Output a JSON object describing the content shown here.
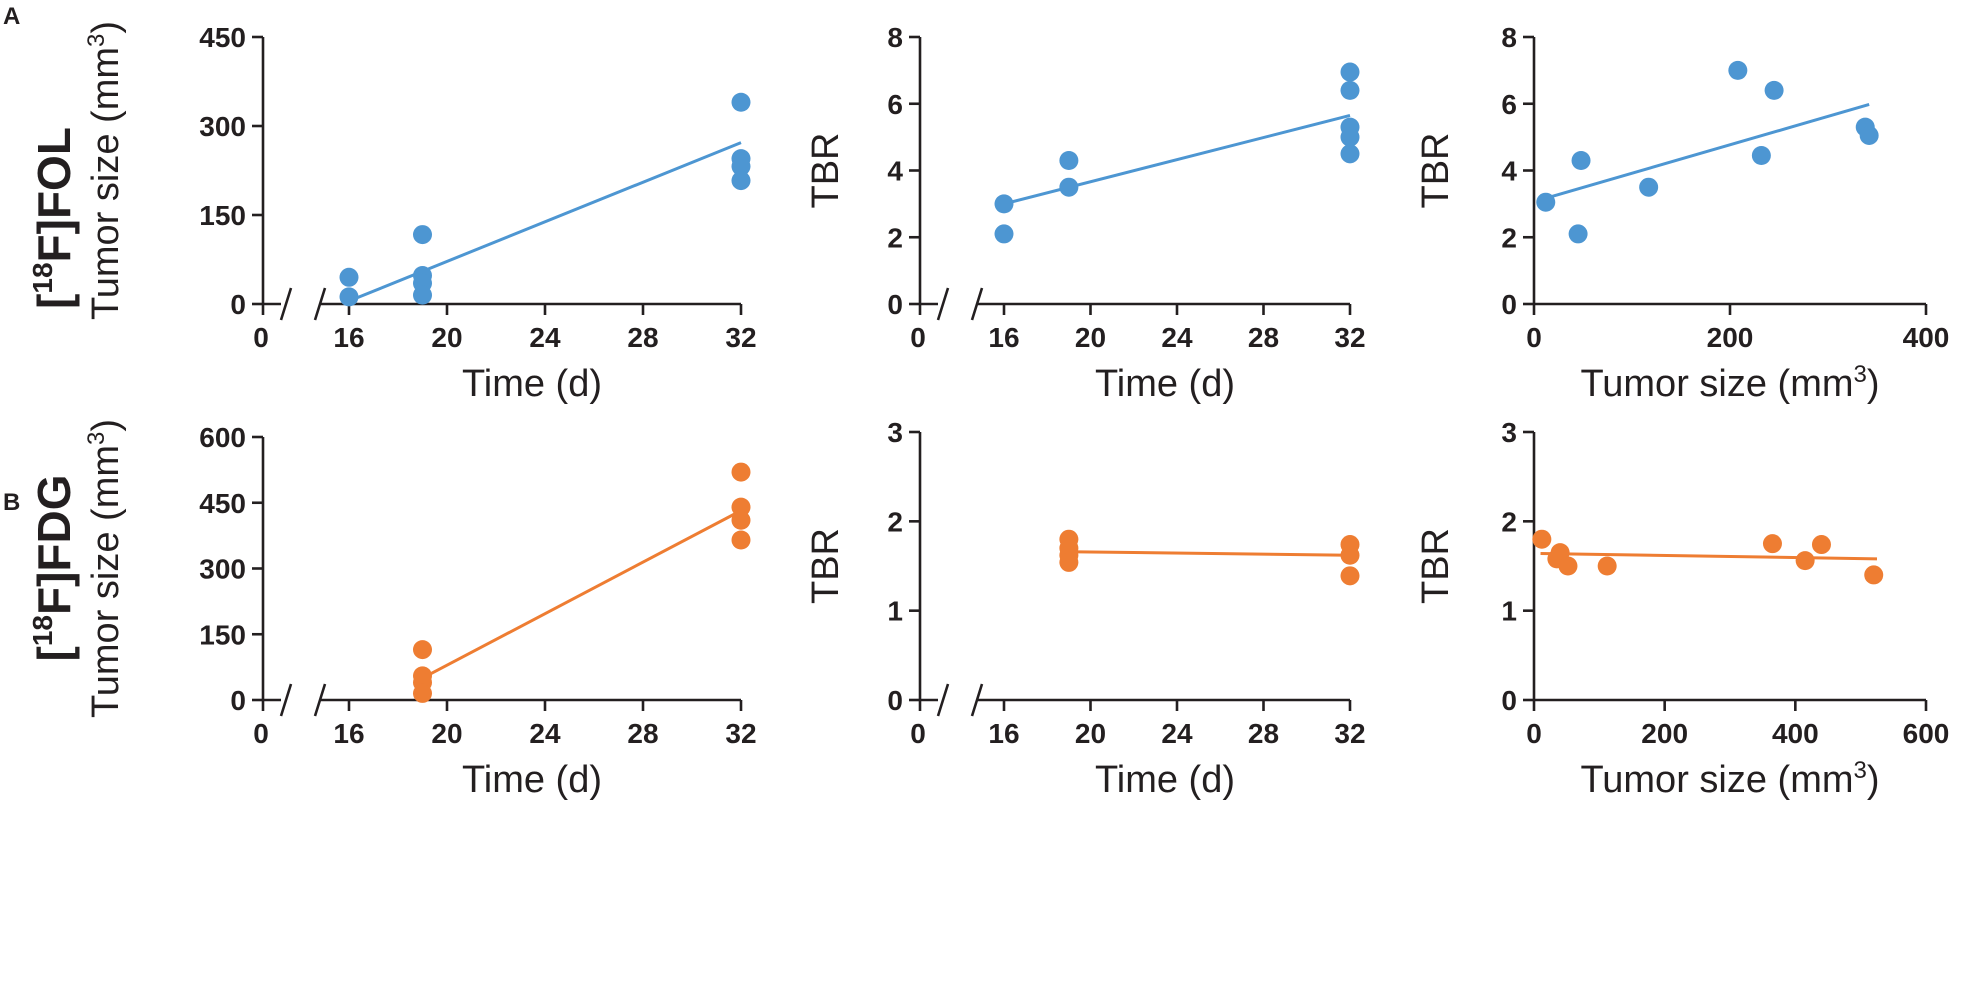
{
  "panel_letters": [
    "A",
    "B"
  ],
  "row_labels": [
    {
      "prefix": "[",
      "sup": "18",
      "suffix": "F]FOL"
    },
    {
      "prefix": "[",
      "sup": "18",
      "suffix": "F]FDG"
    }
  ],
  "colors": {
    "FOL": "#4d96d2",
    "FDG": "#ee7d32",
    "axis": "#231f20"
  },
  "chart_data": [
    {
      "id": "A1",
      "row": "A",
      "type": "scatter",
      "tracer": "[18F]FOL",
      "color": "#4d96d2",
      "title": "",
      "xlabel": "Time (d)",
      "ylabel": "Tumor size (mm",
      "ylabel_sup": "3",
      "ylabel_end": ")",
      "x_broken": true,
      "x_ticks": [
        0,
        16,
        20,
        24,
        28,
        32
      ],
      "xlim": [
        12,
        32
      ],
      "y_ticks": [
        0,
        150,
        300,
        450
      ],
      "ylim": [
        0,
        450
      ],
      "points": [
        [
          16,
          45
        ],
        [
          16,
          12
        ],
        [
          19,
          117
        ],
        [
          19,
          48
        ],
        [
          19,
          35
        ],
        [
          19,
          15
        ],
        [
          32,
          340
        ],
        [
          32,
          245
        ],
        [
          32,
          232
        ],
        [
          32,
          208
        ]
      ],
      "fit": [
        [
          16,
          5
        ],
        [
          32,
          272
        ]
      ]
    },
    {
      "id": "A2",
      "row": "A",
      "type": "scatter",
      "tracer": "[18F]FOL",
      "color": "#4d96d2",
      "title": "",
      "xlabel": "Time (d)",
      "ylabel": "TBR",
      "ylabel_sup": "",
      "ylabel_end": "",
      "x_broken": true,
      "x_ticks": [
        0,
        16,
        20,
        24,
        28,
        32
      ],
      "xlim": [
        12,
        32
      ],
      "y_ticks": [
        0,
        2,
        4,
        6,
        8
      ],
      "ylim": [
        0,
        8
      ],
      "points": [
        [
          16,
          3.0
        ],
        [
          16,
          2.1
        ],
        [
          19,
          4.3
        ],
        [
          19,
          3.5
        ],
        [
          32,
          6.95
        ],
        [
          32,
          6.4
        ],
        [
          32,
          5.3
        ],
        [
          32,
          5.0
        ],
        [
          32,
          4.5
        ]
      ],
      "fit": [
        [
          16,
          3.0
        ],
        [
          32,
          5.65
        ]
      ]
    },
    {
      "id": "A3",
      "row": "A",
      "type": "scatter",
      "tracer": "[18F]FOL",
      "color": "#4d96d2",
      "title": "",
      "xlabel": "Tumor size (mm",
      "xlabel_sup": "3",
      "xlabel_end": ")",
      "ylabel": "TBR",
      "ylabel_sup": "",
      "ylabel_end": "",
      "x_broken": false,
      "x_ticks": [
        0,
        200,
        400
      ],
      "xlim": [
        0,
        400
      ],
      "y_ticks": [
        0,
        2,
        4,
        6,
        8
      ],
      "ylim": [
        0,
        8
      ],
      "points": [
        [
          12,
          3.05
        ],
        [
          45,
          2.1
        ],
        [
          48,
          4.3
        ],
        [
          117,
          3.5
        ],
        [
          208,
          7.0
        ],
        [
          232,
          4.45
        ],
        [
          245,
          6.4
        ],
        [
          338,
          5.3
        ],
        [
          342,
          5.05
        ]
      ],
      "fit": [
        [
          10,
          3.15
        ],
        [
          342,
          5.98
        ]
      ]
    },
    {
      "id": "B1",
      "row": "B",
      "type": "scatter",
      "tracer": "[18F]FDG",
      "color": "#ee7d32",
      "title": "",
      "xlabel": "Time (d)",
      "ylabel": "Tumor size (mm",
      "ylabel_sup": "3",
      "ylabel_end": ")",
      "x_broken": true,
      "x_ticks": [
        0,
        16,
        20,
        24,
        28,
        32
      ],
      "xlim": [
        12,
        32
      ],
      "y_ticks": [
        0,
        150,
        300,
        450,
        600
      ],
      "ylim": [
        0,
        600
      ],
      "points": [
        [
          19,
          115
        ],
        [
          19,
          55
        ],
        [
          19,
          40
        ],
        [
          19,
          15
        ],
        [
          32,
          520
        ],
        [
          32,
          440
        ],
        [
          32,
          410
        ],
        [
          32,
          365
        ]
      ],
      "fit": [
        [
          19,
          50
        ],
        [
          32,
          432
        ]
      ]
    },
    {
      "id": "B2",
      "row": "B",
      "type": "scatter",
      "tracer": "[18F]FDG",
      "color": "#ee7d32",
      "title": "",
      "xlabel": "Time (d)",
      "ylabel": "TBR",
      "ylabel_sup": "",
      "ylabel_end": "",
      "x_broken": true,
      "x_ticks": [
        0,
        16,
        20,
        24,
        28,
        32
      ],
      "xlim": [
        12,
        32
      ],
      "y_ticks": [
        0,
        1,
        2,
        3
      ],
      "ylim": [
        0,
        3
      ],
      "points": [
        [
          19,
          1.8
        ],
        [
          19,
          1.7
        ],
        [
          19,
          1.62
        ],
        [
          19,
          1.54
        ],
        [
          32,
          1.74
        ],
        [
          32,
          1.62
        ],
        [
          32,
          1.39
        ]
      ],
      "fit": [
        [
          19,
          1.66
        ],
        [
          32,
          1.62
        ]
      ]
    },
    {
      "id": "B3",
      "row": "B",
      "type": "scatter",
      "tracer": "[18F]FDG",
      "color": "#ee7d32",
      "title": "",
      "xlabel": "Tumor size (mm",
      "xlabel_sup": "3",
      "xlabel_end": ")",
      "ylabel": "TBR",
      "ylabel_sup": "",
      "ylabel_end": "",
      "x_broken": false,
      "x_ticks": [
        0,
        200,
        400,
        600
      ],
      "xlim": [
        0,
        600
      ],
      "y_ticks": [
        0,
        1,
        2,
        3
      ],
      "ylim": [
        0,
        3
      ],
      "points": [
        [
          12,
          1.8
        ],
        [
          35,
          1.58
        ],
        [
          40,
          1.65
        ],
        [
          52,
          1.5
        ],
        [
          112,
          1.5
        ],
        [
          365,
          1.75
        ],
        [
          415,
          1.56
        ],
        [
          440,
          1.74
        ],
        [
          520,
          1.4
        ]
      ],
      "fit": [
        [
          10,
          1.64
        ],
        [
          525,
          1.58
        ]
      ]
    }
  ]
}
